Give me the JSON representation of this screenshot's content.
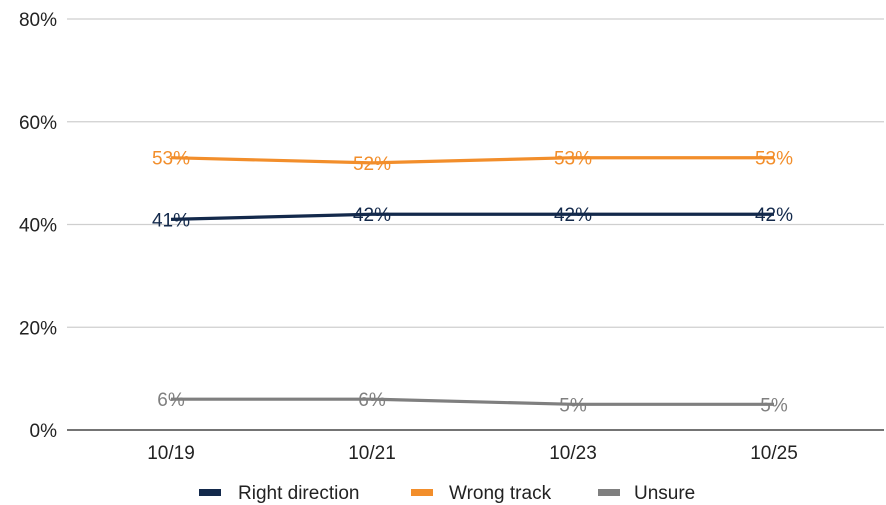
{
  "chart_data": {
    "type": "line",
    "title": "",
    "xlabel": "",
    "ylabel": "",
    "x": [
      "10/19",
      "10/21",
      "10/23",
      "10/25"
    ],
    "ylim": [
      0,
      80
    ],
    "yticks": [
      0,
      20,
      40,
      60,
      80
    ],
    "ytick_labels": [
      "0%",
      "20%",
      "40%",
      "60%",
      "80%"
    ],
    "grid": true,
    "legend_position": "bottom",
    "series": [
      {
        "name": "Right direction",
        "color": "#13294b",
        "values": [
          41,
          42,
          42,
          42
        ],
        "labels": [
          "41%",
          "42%",
          "42%",
          "42%"
        ]
      },
      {
        "name": "Wrong track",
        "color": "#f28e2b",
        "values": [
          53,
          52,
          53,
          53
        ],
        "labels": [
          "53%",
          "52%",
          "53%",
          "53%"
        ]
      },
      {
        "name": "Unsure",
        "color": "#7f7f7f",
        "values": [
          6,
          6,
          5,
          5
        ],
        "labels": [
          "6%",
          "6%",
          "5%",
          "5%"
        ]
      }
    ]
  }
}
